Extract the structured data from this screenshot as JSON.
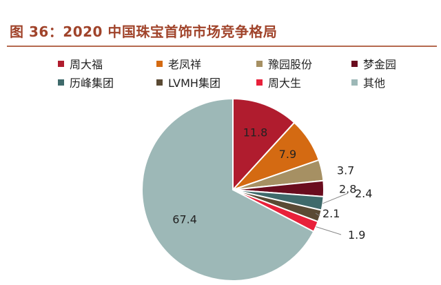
{
  "chart_data": {
    "type": "pie",
    "title": "图 36：2020 中国珠宝首饰市场竞争格局",
    "start": "12 o'clock",
    "direction": "clockwise",
    "legend_position": "top",
    "slices": [
      {
        "label": "周大福",
        "value": 11.8,
        "value_text": "11.8",
        "color": "#b01c2e"
      },
      {
        "label": "老凤祥",
        "value": 7.9,
        "value_text": "7.9",
        "color": "#d46a12"
      },
      {
        "label": "豫园股份",
        "value": 3.7,
        "value_text": "3.7",
        "color": "#a69063"
      },
      {
        "label": "梦金园",
        "value": 2.8,
        "value_text": "2.8",
        "color": "#6a0c1e"
      },
      {
        "label": "历峰集团",
        "value": 2.4,
        "value_text": "2.4",
        "color": "#3f6a6b"
      },
      {
        "label": "LVMH集团",
        "value": 2.1,
        "value_text": "2.1",
        "color": "#5a4a34"
      },
      {
        "label": "周大生",
        "value": 1.9,
        "value_text": "1.9",
        "color": "#e8203a"
      },
      {
        "label": "其他",
        "value": 67.4,
        "value_text": "67.4",
        "color": "#9db8b7"
      }
    ]
  }
}
